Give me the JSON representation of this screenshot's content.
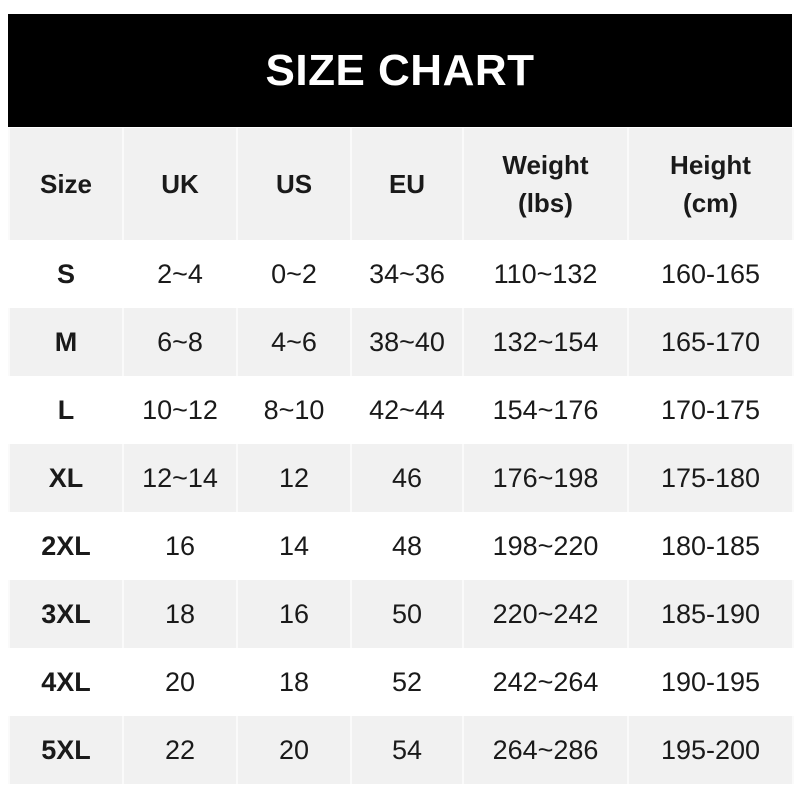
{
  "title": "SIZE CHART",
  "headers": [
    {
      "line1": "Size",
      "line2": ""
    },
    {
      "line1": "UK",
      "line2": ""
    },
    {
      "line1": "US",
      "line2": ""
    },
    {
      "line1": "EU",
      "line2": ""
    },
    {
      "line1": "Weight",
      "line2": "(lbs)"
    },
    {
      "line1": "Height",
      "line2": "(cm)"
    }
  ],
  "rows": [
    [
      "S",
      "2~4",
      "0~2",
      "34~36",
      "110~132",
      "160-165"
    ],
    [
      "M",
      "6~8",
      "4~6",
      "38~40",
      "132~154",
      "165-170"
    ],
    [
      "L",
      "10~12",
      "8~10",
      "42~44",
      "154~176",
      "170-175"
    ],
    [
      "XL",
      "12~14",
      "12",
      "46",
      "176~198",
      "175-180"
    ],
    [
      "2XL",
      "16",
      "14",
      "48",
      "198~220",
      "180-185"
    ],
    [
      "3XL",
      "18",
      "16",
      "50",
      "220~242",
      "185-190"
    ],
    [
      "4XL",
      "20",
      "18",
      "52",
      "242~264",
      "190-195"
    ],
    [
      "5XL",
      "22",
      "20",
      "54",
      "264~286",
      "195-200"
    ]
  ],
  "colors": {
    "title_bg": "#000000",
    "header_bg": "#f1f1f1",
    "alt_row_bg": "#f1f1f1"
  }
}
